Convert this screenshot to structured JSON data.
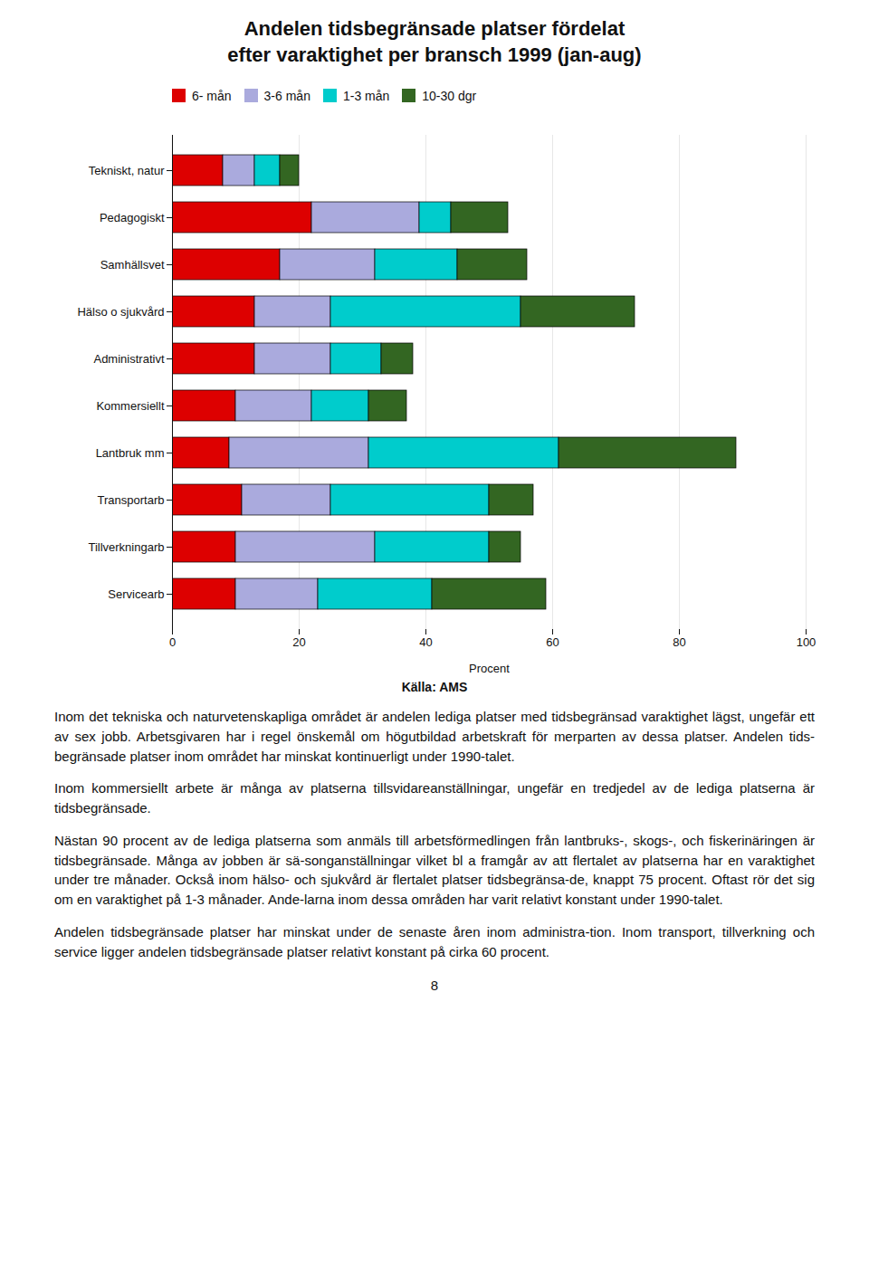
{
  "chart_data": {
    "type": "bar",
    "orientation": "horizontal",
    "stacked": true,
    "title": "Andelen tidsbegränsade platser fördelat",
    "subtitle": "efter varaktighet per bransch 1999 (jan-aug)",
    "categories": [
      "Tekniskt, natur",
      "Pedagogiskt",
      "Samhällsvet",
      "Hälso o sjukvård",
      "Administrativt",
      "Kommersiellt",
      "Lantbruk mm",
      "Transportarb",
      "Tillverkningarb",
      "Servicearb"
    ],
    "series": [
      {
        "name": "6- mån",
        "color": "#dd0000",
        "values": [
          8,
          22,
          17,
          13,
          13,
          10,
          9,
          11,
          10,
          10
        ]
      },
      {
        "name": "3-6 mån",
        "color": "#aaaadd",
        "values": [
          5,
          17,
          15,
          12,
          12,
          12,
          22,
          14,
          22,
          13
        ]
      },
      {
        "name": "1-3 mån",
        "color": "#00cccc",
        "values": [
          4,
          5,
          13,
          30,
          8,
          9,
          30,
          25,
          18,
          18
        ]
      },
      {
        "name": "10-30 dgr",
        "color": "#336622",
        "values": [
          3,
          9,
          11,
          18,
          5,
          6,
          28,
          7,
          5,
          18
        ]
      }
    ],
    "xlim": [
      0,
      100
    ],
    "xticks": [
      0,
      20,
      40,
      60,
      80,
      100
    ],
    "xlabel": "Procent",
    "grid": true,
    "legend": "upper left",
    "annotations": [
      "Källa: AMS",
      "Inom det tekniska och naturvetenskapliga området är andelen lediga platser med tidsbegränsad varaktighet lägst, ungefär ett av sex jobb. Arbetsgivaren har i regel önskemål om högutbildad arbetskraft för merparten av dessa platser. Andelen tids-begränsade platser inom området har minskat kontinuerligt under 1990-talet.",
      "Inom kommersiellt arbete är många av platserna tillsvidareanställningar, ungefär en tredjedel av de lediga platserna är tidsbegränsade.",
      "Nästan 90 procent av de lediga platserna som anmäls till arbetsförmedlingen från lantbruks-, skogs-, och fiskerinäringen är tidsbegränsade. Många av jobben är sä-songanställningar vilket bl a framgår av att flertalet av platserna har en varaktighet under tre månader. Också inom hälso- och sjukvård är flertalet platser tidsbegränsa-de, knappt 75 procent. Oftast rör det sig om en varaktighet på 1-3 månader. Ande-larna inom dessa områden har varit relativt konstant under 1990-talet.",
      "Andelen tidsbegränsade platser har minskat under de senaste åren inom administra-tion. Inom transport, tillverkning och service ligger andelen tidsbegränsade platser relativt konstant på cirka 60 procent.",
      "8"
    ]
  }
}
